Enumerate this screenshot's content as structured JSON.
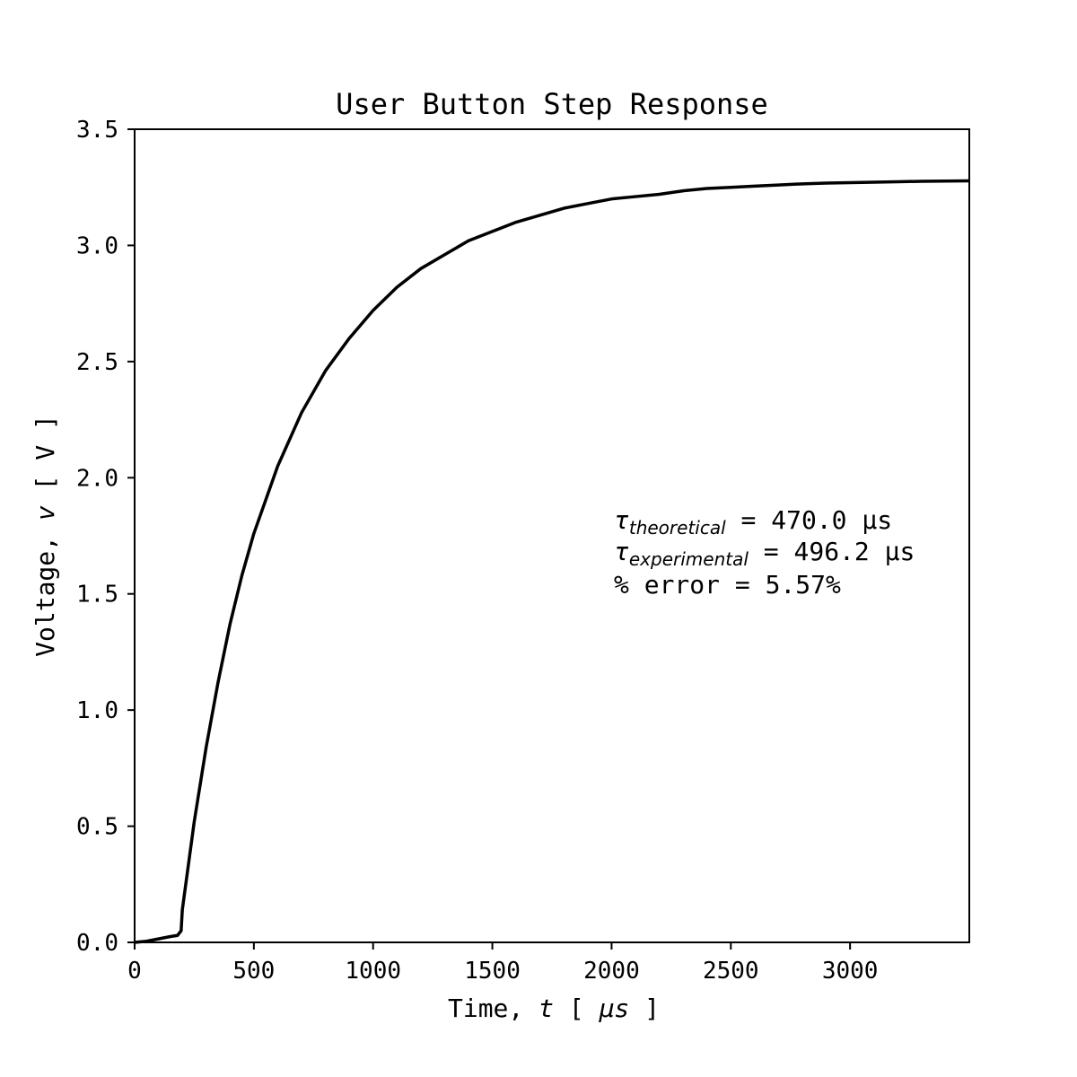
{
  "chart_data": {
    "type": "line",
    "title": "User Button Step Response",
    "xlabel": {
      "prefix": "Time, ",
      "var": "t",
      "bracket_open": " [ ",
      "unit": "μs",
      "bracket_close": " ]"
    },
    "ylabel": {
      "prefix": "Voltage, ",
      "var": "v",
      "suffix": " [ V ]"
    },
    "xlim": [
      0,
      3500
    ],
    "ylim": [
      0.0,
      3.5
    ],
    "x_ticks": [
      0,
      500,
      1000,
      1500,
      2000,
      2500,
      3000
    ],
    "x_tick_labels": [
      "0",
      "500",
      "1000",
      "1500",
      "2000",
      "2500",
      "3000"
    ],
    "y_ticks": [
      0.0,
      0.5,
      1.0,
      1.5,
      2.0,
      2.5,
      3.0,
      3.5
    ],
    "y_tick_labels": [
      "0.0",
      "0.5",
      "1.0",
      "1.5",
      "2.0",
      "2.5",
      "3.0",
      "3.5"
    ],
    "grid": false,
    "series": [
      {
        "color": "#000000",
        "x": [
          0,
          50,
          100,
          150,
          180,
          195,
          200,
          250,
          300,
          350,
          400,
          450,
          500,
          600,
          700,
          800,
          900,
          1000,
          1100,
          1200,
          1300,
          1400,
          1500,
          1600,
          1700,
          1800,
          1900,
          2000,
          2100,
          2200,
          2300,
          2400,
          2500,
          2600,
          2700,
          2800,
          2900,
          3000,
          3100,
          3200,
          3300,
          3400,
          3500
        ],
        "y": [
          0.0,
          0.005,
          0.015,
          0.025,
          0.03,
          0.05,
          0.14,
          0.52,
          0.84,
          1.12,
          1.37,
          1.58,
          1.76,
          2.05,
          2.28,
          2.46,
          2.6,
          2.72,
          2.82,
          2.9,
          2.96,
          3.02,
          3.06,
          3.1,
          3.13,
          3.16,
          3.18,
          3.2,
          3.21,
          3.22,
          3.235,
          3.245,
          3.25,
          3.255,
          3.26,
          3.265,
          3.268,
          3.27,
          3.272,
          3.274,
          3.276,
          3.277,
          3.278
        ]
      }
    ],
    "annotations": {
      "tau_symbol": "τ",
      "theoretical_sub": "theoretical",
      "theoretical_value": "   = 470.0 μs",
      "experimental_sub": "experimental",
      "experimental_value": " = 496.2 μs",
      "error_line": "% error   = 5.57%"
    }
  }
}
